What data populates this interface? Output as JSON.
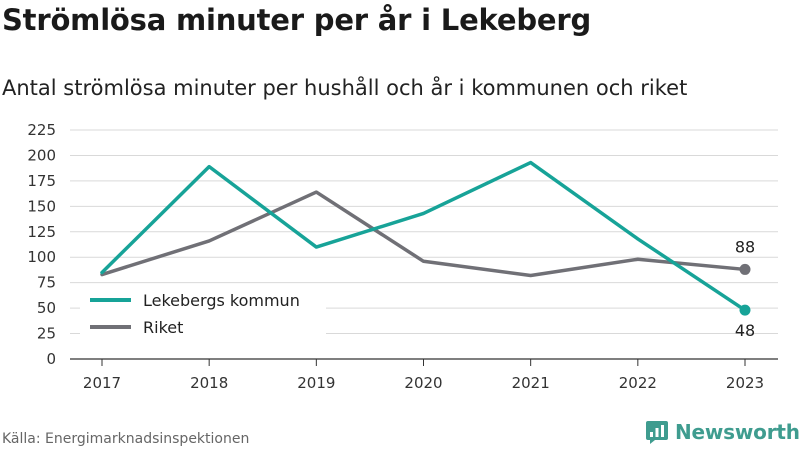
{
  "title": "Strömlösa minuter per år i Lekeberg",
  "subtitle": "Antal strömlösa minuter per hushåll och år i kommunen och riket",
  "source": "Källa: Energimarknadsinspektionen",
  "brand": {
    "name": "Newsworthy",
    "icon": "newsworthy-logo-icon",
    "color": "#3f9c8f"
  },
  "chart_data": {
    "type": "line",
    "title": "Strömlösa minuter per år i Lekeberg",
    "subtitle": "Antal strömlösa minuter per hushåll och år i kommunen och riket",
    "x": [
      "2017",
      "2018",
      "2019",
      "2020",
      "2021",
      "2022",
      "2023"
    ],
    "ylim": [
      0,
      225
    ],
    "yticks": [
      0,
      25,
      50,
      75,
      100,
      125,
      150,
      175,
      200,
      225
    ],
    "grid": true,
    "legend_position": "bottom-left",
    "series": [
      {
        "name": "Lekebergs kommun",
        "color": "#17a398",
        "values": [
          85,
          189,
          110,
          143,
          193,
          118,
          48
        ],
        "end_label": "48"
      },
      {
        "name": "Riket",
        "color": "#707076",
        "values": [
          83,
          116,
          164,
          96,
          82,
          98,
          88
        ],
        "end_label": "88"
      }
    ]
  }
}
